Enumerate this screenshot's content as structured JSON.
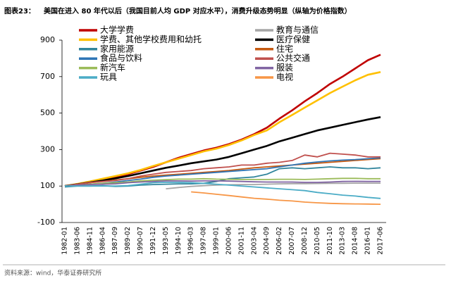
{
  "chart_data": {
    "type": "line",
    "label": "图表23：",
    "title": "美国在进入 80 年代以后（我国目前人均 GDP 对应水平），消费升级态势明显（纵轴为价格指数）",
    "source": "资料来源：wind，华泰证券研究所",
    "categories": [
      "1982-01",
      "1983-06",
      "1984-11",
      "1986-04",
      "1987-09",
      "1989-02",
      "1990-07",
      "1991-12",
      "1993-05",
      "1994-10",
      "1996-03",
      "1997-08",
      "1999-01",
      "2000-06",
      "2001-11",
      "2003-04",
      "2004-09",
      "2006-02",
      "2007-07",
      "2008-12",
      "2010-05",
      "2011-10",
      "2013-03",
      "2014-08",
      "2016-01",
      "2017-06"
    ],
    "ylim": [
      -100,
      900
    ],
    "yticks": [
      -100,
      100,
      300,
      500,
      700,
      900
    ],
    "grid": false,
    "series": [
      {
        "name": "大学学费",
        "color": "#c00000",
        "values": [
          100,
          110,
          122,
          135,
          150,
          165,
          185,
          205,
          230,
          255,
          275,
          295,
          310,
          330,
          355,
          385,
          420,
          470,
          515,
          565,
          610,
          660,
          700,
          745,
          790,
          820
        ]
      },
      {
        "name": "教育与通信",
        "color": "#a6a6a6",
        "values": [
          null,
          null,
          null,
          null,
          null,
          null,
          null,
          null,
          85,
          92,
          98,
          102,
          105,
          107,
          108,
          108,
          110,
          112,
          113,
          113,
          114,
          115,
          115,
          116,
          116,
          116
        ]
      },
      {
        "name": "学费、其他学校费用和幼托",
        "color": "#ffc000",
        "values": [
          100,
          112,
          125,
          140,
          155,
          170,
          188,
          210,
          230,
          250,
          270,
          290,
          305,
          325,
          350,
          380,
          405,
          450,
          490,
          530,
          570,
          610,
          645,
          680,
          710,
          725
        ]
      },
      {
        "name": "医疗保健",
        "color": "#000000",
        "values": [
          100,
          110,
          120,
          130,
          142,
          155,
          170,
          185,
          200,
          212,
          225,
          235,
          245,
          260,
          280,
          300,
          320,
          345,
          365,
          385,
          405,
          420,
          435,
          450,
          465,
          478
        ]
      },
      {
        "name": "家用能源",
        "color": "#31859c",
        "values": [
          95,
          100,
          100,
          102,
          98,
          100,
          105,
          108,
          110,
          112,
          112,
          115,
          125,
          140,
          145,
          150,
          165,
          195,
          200,
          195,
          200,
          205,
          200,
          200,
          195,
          200
        ]
      },
      {
        "name": "住宅",
        "color": "#c55a11",
        "values": [
          100,
          110,
          118,
          125,
          133,
          140,
          148,
          155,
          160,
          165,
          170,
          175,
          180,
          185,
          193,
          200,
          205,
          210,
          215,
          220,
          225,
          230,
          235,
          240,
          245,
          250
        ]
      },
      {
        "name": "食品与饮料",
        "color": "#2e75b6",
        "values": [
          100,
          105,
          110,
          115,
          122,
          130,
          138,
          148,
          155,
          160,
          165,
          170,
          175,
          180,
          185,
          190,
          195,
          205,
          215,
          225,
          232,
          238,
          242,
          245,
          250,
          255
        ]
      },
      {
        "name": "公共交通",
        "color": "#c0504d",
        "values": [
          100,
          110,
          120,
          125,
          130,
          140,
          155,
          165,
          175,
          180,
          185,
          195,
          200,
          205,
          215,
          215,
          225,
          230,
          240,
          270,
          260,
          280,
          275,
          270,
          260,
          260
        ]
      },
      {
        "name": "新汽车",
        "color": "#9bbb59",
        "values": [
          100,
          105,
          110,
          115,
          118,
          122,
          128,
          132,
          135,
          138,
          138,
          140,
          138,
          137,
          136,
          136,
          136,
          137,
          137,
          136,
          138,
          140,
          142,
          142,
          140,
          140
        ]
      },
      {
        "name": "服装",
        "color": "#8064a2",
        "values": [
          100,
          105,
          108,
          110,
          112,
          118,
          122,
          125,
          128,
          128,
          127,
          128,
          128,
          127,
          125,
          123,
          122,
          122,
          122,
          120,
          120,
          122,
          125,
          126,
          125,
          125
        ]
      },
      {
        "name": "玩具",
        "color": "#4bacc6",
        "values": [
          100,
          100,
          100,
          100,
          100,
          102,
          110,
          118,
          120,
          120,
          118,
          115,
          110,
          105,
          100,
          95,
          90,
          85,
          80,
          75,
          65,
          58,
          50,
          45,
          38,
          32
        ]
      },
      {
        "name": "电视",
        "color": "#f79646",
        "values": [
          null,
          null,
          null,
          null,
          null,
          null,
          null,
          null,
          null,
          null,
          68,
          62,
          55,
          48,
          40,
          33,
          28,
          22,
          18,
          12,
          8,
          5,
          3,
          2,
          1,
          0
        ]
      }
    ]
  }
}
